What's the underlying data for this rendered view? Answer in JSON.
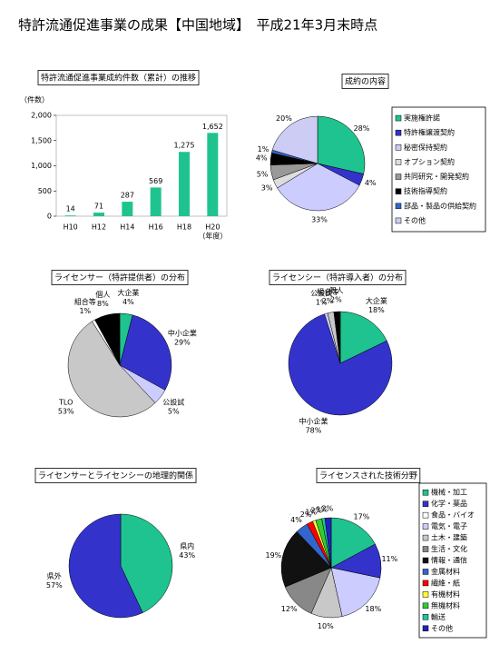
{
  "title": "特許流通促進事業の成果【中国地域】　平成21年3月末時点",
  "chart_data": [
    {
      "type": "bar",
      "title": "特許流通促進事業成約件数（累計）の推移",
      "y_label": "（件数）",
      "x_label": "（年度）",
      "categories": [
        "H10",
        "H12",
        "H14",
        "H16",
        "H18",
        "H20"
      ],
      "values": [
        14,
        71,
        287,
        569,
        1275,
        1652
      ],
      "value_labels": [
        "14",
        "71",
        "287",
        "569",
        "1,275",
        "1,652"
      ],
      "ylim": [
        0,
        2000
      ],
      "yticks": [
        0,
        500,
        {
          "value": 1000,
          "label": "1,000"
        },
        {
          "value": 1500,
          "label": "1,500"
        },
        {
          "value": 2000,
          "label": "2,000"
        }
      ],
      "color": "#1fc38f"
    },
    {
      "type": "pie",
      "title": "成約の内容",
      "legend": "right",
      "categories": [
        "実施権許諾",
        "特許権譲渡契約",
        "秘密保持契約",
        "オプション契約",
        "共同研究・開発契約",
        "技術指導契約",
        "部品・製品の供給契約",
        "その他"
      ],
      "values": [
        28,
        4,
        33,
        3,
        5,
        4,
        1,
        20
      ],
      "value_labels": [
        "28%",
        "4%",
        "33%",
        "3%",
        "5%",
        "4%",
        "1%",
        "20%"
      ],
      "colors": [
        "#1fc38f",
        "#3333cc",
        "#ccccff",
        "#dddddd",
        "#999999",
        "#000000",
        "#3366cc",
        "#ccccf5"
      ]
    },
    {
      "type": "pie",
      "title": "ライセンサー（特許提供者）の分布",
      "legend": "none",
      "categories": [
        "大企業",
        "中小企業",
        "公設試",
        "TLO",
        "組合等",
        "個人"
      ],
      "values": [
        4,
        29,
        5,
        53,
        1,
        8
      ],
      "value_labels": [
        "4%",
        "29%",
        "5%",
        "53%",
        "1%",
        "8%"
      ],
      "colors": [
        "#1fc38f",
        "#3333cc",
        "#ccccff",
        "#c8c8c8",
        "#ffffff",
        "#000000"
      ]
    },
    {
      "type": "pie",
      "title": "ライセンシー（特許導入者）の分布",
      "legend": "none",
      "categories": [
        "大企業",
        "中小企業",
        "公設試",
        "組合等",
        "個人"
      ],
      "values": [
        18,
        78,
        1,
        2,
        2
      ],
      "value_labels": [
        "18%",
        "78%",
        "1%",
        "2%",
        "2%"
      ],
      "colors": [
        "#1fc38f",
        "#3333cc",
        "#ccccff",
        "#c8c8c8",
        "#000000"
      ]
    },
    {
      "type": "pie",
      "title": "ライセンサーとライセンシーの地理的関係",
      "legend": "none",
      "categories": [
        "県内",
        "県外"
      ],
      "values": [
        43,
        57
      ],
      "value_labels": [
        "43%",
        "57%"
      ],
      "colors": [
        "#1fc38f",
        "#3333cc"
      ]
    },
    {
      "type": "pie",
      "title": "ライセンスされた技術分野",
      "legend": "right",
      "categories": [
        "機械・加工",
        "化学・薬品",
        "食品・バイオ",
        "電気・電子",
        "土木・建築",
        "生活・文化",
        "情報・通信",
        "金属材料",
        "繊維・紙",
        "有機材料",
        "無機材料",
        "輸送",
        "その他"
      ],
      "values": [
        17,
        11,
        0,
        18,
        10,
        12,
        19,
        4,
        2,
        1,
        2,
        1,
        2
      ],
      "value_labels": [
        "17%",
        "11%",
        null,
        "18%",
        "10%",
        "12%",
        "19%",
        "4%",
        "2%",
        "1%",
        "2%",
        "1%",
        "2%"
      ],
      "colors": [
        "#1fc38f",
        "#3333cc",
        "#ffffff",
        "#ccccff",
        "#c8c8c8",
        "#888888",
        "#111111",
        "#3366cc",
        "#ff0000",
        "#ffff33",
        "#33cc33",
        "#1fc3a0",
        "#2222bb"
      ]
    }
  ]
}
